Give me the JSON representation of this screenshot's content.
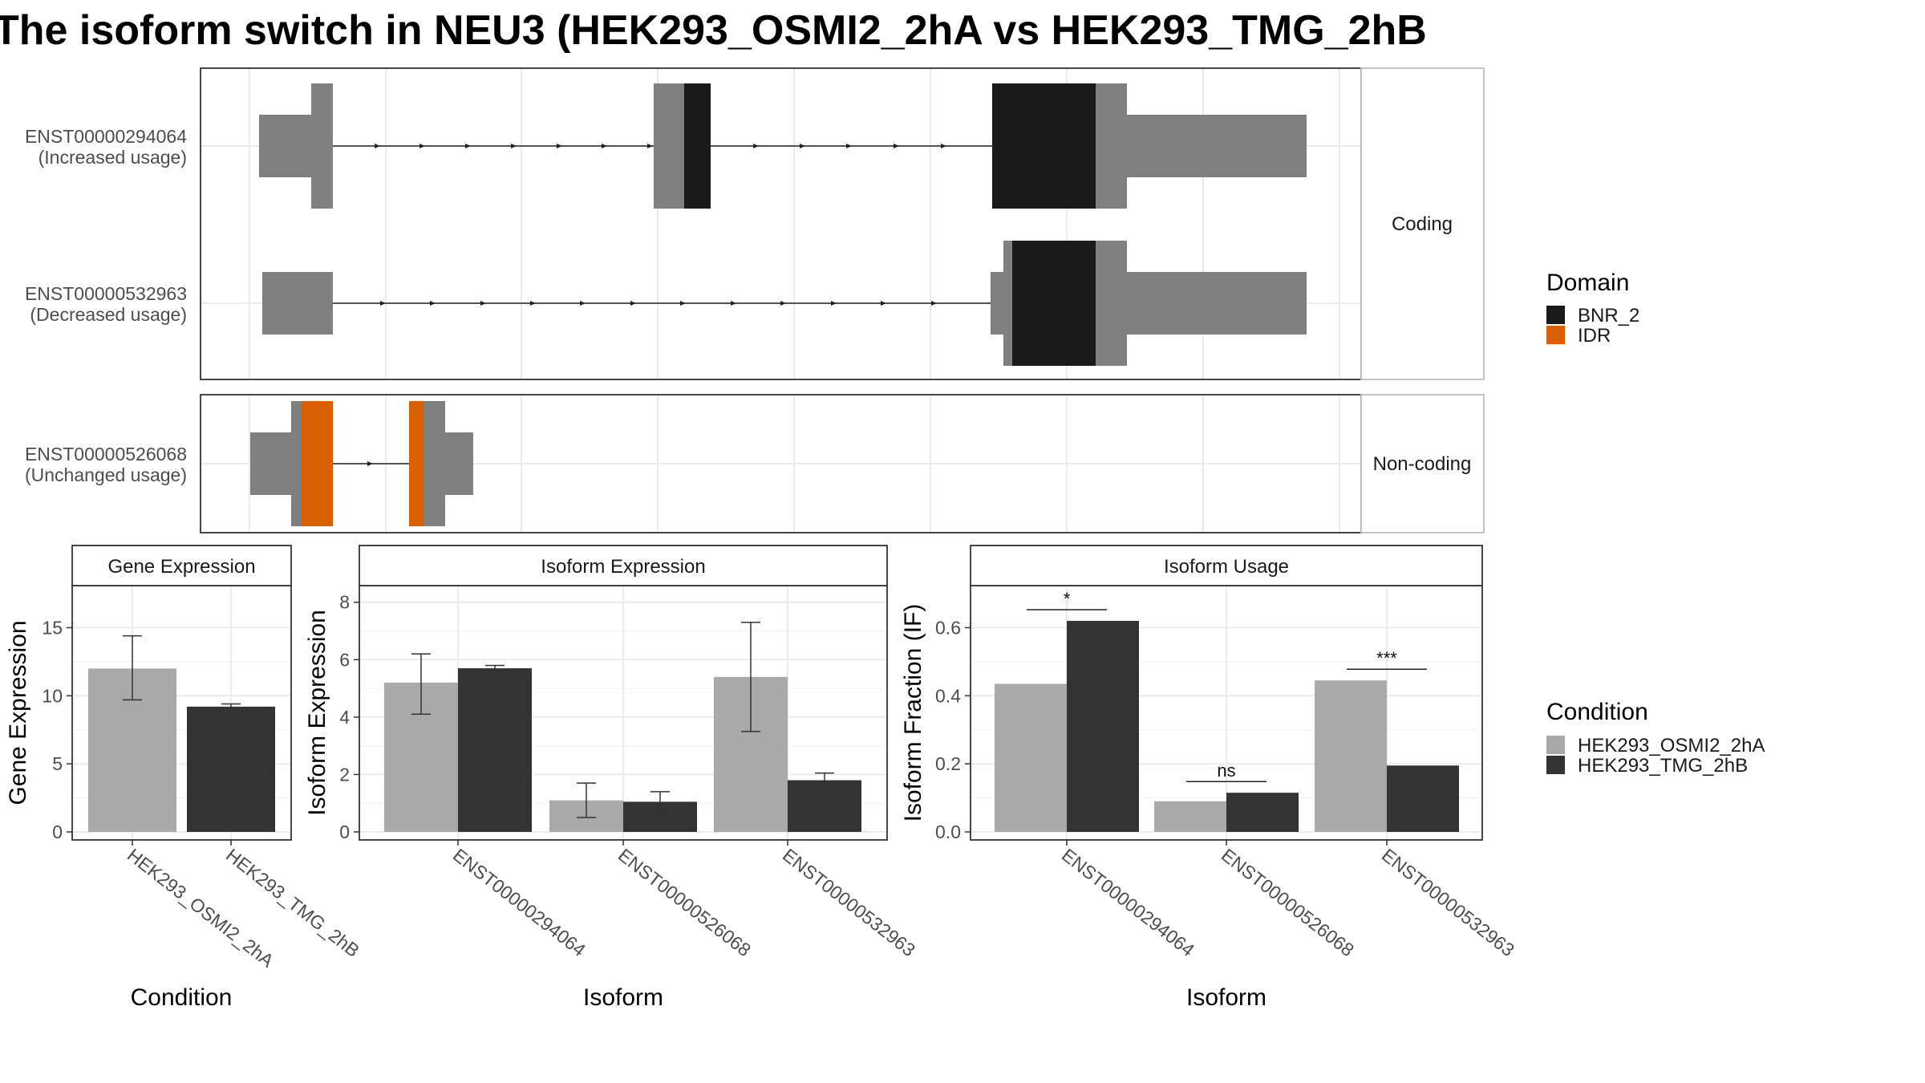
{
  "title": "The isoform switch in NEU3 (HEK293_OSMI2_2hA vs HEK293_TMG_2hB",
  "legends": {
    "domain": {
      "title": "Domain",
      "items": [
        {
          "label": "BNR_2",
          "color": "#1a1a1a"
        },
        {
          "label": "IDR",
          "color": "#d95f02"
        }
      ]
    },
    "condition": {
      "title": "Condition",
      "items": [
        {
          "label": "HEK293_OSMI2_2hA",
          "color": "#a9a9a9"
        },
        {
          "label": "HEK293_TMG_2hB",
          "color": "#333333"
        }
      ]
    }
  },
  "colors": {
    "exon": "#808080",
    "domain": "#1a1a1a",
    "idr": "#d95f02",
    "cond_a": "#a9a9a9",
    "cond_b": "#333333"
  },
  "chart_data": [
    {
      "type": "gene-structure",
      "panels": [
        {
          "strip": "Coding",
          "isoforms": [
            {
              "id": "ENST00000294064",
              "usage": "(Increased usage)"
            },
            {
              "id": "ENST00000532963",
              "usage": "(Decreased usage)"
            }
          ]
        },
        {
          "strip": "Non-coding",
          "isoforms": [
            {
              "id": "ENST00000526068",
              "usage": "(Unchanged usage)"
            }
          ]
        }
      ]
    },
    {
      "type": "bar",
      "strip": "Gene Expression",
      "xlabel": "Condition",
      "ylabel": "Gene Expression",
      "ylim": [
        0,
        17.5
      ],
      "yticks": [
        0,
        5,
        10,
        15
      ],
      "categories": [
        "HEK293_OSMI2_2hA",
        "HEK293_TMG_2hB"
      ],
      "values": [
        12.0,
        9.2
      ],
      "error_low": [
        9.7,
        9.0
      ],
      "error_high": [
        14.4,
        9.4
      ]
    },
    {
      "type": "bar",
      "strip": "Isoform Expression",
      "xlabel": "Isoform",
      "ylabel": "Isoform Expression",
      "ylim": [
        0,
        8.3
      ],
      "yticks": [
        0,
        2,
        4,
        6,
        8
      ],
      "categories": [
        "ENST00000294064",
        "ENST00000526068",
        "ENST00000532963"
      ],
      "series": [
        {
          "name": "HEK293_OSMI2_2hA",
          "values": [
            5.2,
            1.1,
            5.4
          ],
          "error_low": [
            4.1,
            0.5,
            3.5
          ],
          "error_high": [
            6.2,
            1.7,
            7.3
          ]
        },
        {
          "name": "HEK293_TMG_2hB",
          "values": [
            5.7,
            1.05,
            1.8
          ],
          "error_low": [
            5.65,
            0.75,
            1.6
          ],
          "error_high": [
            5.8,
            1.4,
            2.05
          ]
        }
      ]
    },
    {
      "type": "bar",
      "strip": "Isoform Usage",
      "xlabel": "Isoform",
      "ylabel": "Isoform Fraction (IF)",
      "ylim": [
        0,
        0.7
      ],
      "yticks": [
        0.0,
        0.2,
        0.4,
        0.6
      ],
      "categories": [
        "ENST00000294064",
        "ENST00000526068",
        "ENST00000532963"
      ],
      "series": [
        {
          "name": "HEK293_OSMI2_2hA",
          "values": [
            0.435,
            0.09,
            0.445
          ]
        },
        {
          "name": "HEK293_TMG_2hB",
          "values": [
            0.62,
            0.115,
            0.195
          ]
        }
      ],
      "significance": [
        "*",
        "ns",
        "***"
      ]
    }
  ]
}
